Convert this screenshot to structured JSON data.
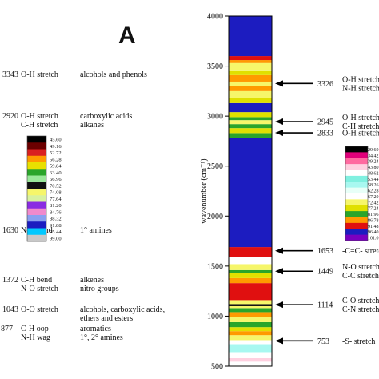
{
  "left_panel": {
    "panel_label": "A",
    "rows": [
      {
        "wavenumber": "3343",
        "bond": "O-H stretch",
        "group": "alcohols and phenols"
      },
      {
        "wavenumber": "2920",
        "bond": "O-H stretch\nC-H stretch",
        "group": "carboxylic acids\nalkanes"
      },
      {
        "wavenumber": "1630",
        "bond": "N-H bend",
        "group": "1° amines"
      },
      {
        "wavenumber": "1372",
        "bond": "C-H bend\nN-O stretch",
        "group": "alkenes\nnitro groups"
      },
      {
        "wavenumber": "1043",
        "bond": "O-O stretch",
        "group": "alcohols, carboxylic acids,\nethers and esters"
      },
      {
        "wavenumber": "877",
        "bond": "C-H oop\nN-H wag",
        "group": "aromatics\n1°, 2° amines"
      }
    ]
  },
  "chart_data": {
    "type": "heatmap",
    "ylabel": "wavenumber (cm⁻¹)",
    "ylim": [
      500,
      4000
    ],
    "yticks": [
      500,
      1000,
      1500,
      2000,
      2500,
      3000,
      3500,
      4000
    ],
    "legends": [
      {
        "entries": [
          {
            "value": 45.6,
            "label": "45.60",
            "color": "#000000"
          },
          {
            "value": 49.16,
            "label": "49.16",
            "color": "#6b0000"
          },
          {
            "value": 52.72,
            "label": "52.72",
            "color": "#d92020"
          },
          {
            "value": 56.28,
            "label": "56.28",
            "color": "#ff9a00"
          },
          {
            "value": 59.84,
            "label": "59.84",
            "color": "#e8e000"
          },
          {
            "value": 63.4,
            "label": "63.40",
            "color": "#2aa52a"
          },
          {
            "value": 66.96,
            "label": "66.96",
            "color": "#9ae89a"
          },
          {
            "value": 70.52,
            "label": "70.52",
            "color": "#111111"
          },
          {
            "value": 74.08,
            "label": "74.08",
            "color": "#f6f66a"
          },
          {
            "value": 77.64,
            "label": "77.64",
            "color": "#d8f2a0"
          },
          {
            "value": 81.2,
            "label": "81.20",
            "color": "#8a2be2"
          },
          {
            "value": 84.76,
            "label": "84.76",
            "color": "#f08acc"
          },
          {
            "value": 88.32,
            "label": "88.32",
            "color": "#8aa0f0"
          },
          {
            "value": 91.88,
            "label": "91.88",
            "color": "#1c1cc0"
          },
          {
            "value": 95.44,
            "label": "95.44",
            "color": "#00c8ff"
          },
          {
            "value": 99.0,
            "label": "99.00",
            "color": "#c8c8c8"
          }
        ]
      },
      {
        "entries": [
          {
            "value": 29.6,
            "label": "29.60",
            "color": "#000000"
          },
          {
            "value": 34.42,
            "label": "34.42",
            "color": "#e0007a"
          },
          {
            "value": 39.24,
            "label": "39.24",
            "color": "#ff6aa0"
          },
          {
            "value": 43.8,
            "label": "43.80",
            "color": "#ffd0e0"
          },
          {
            "value": 48.62,
            "label": "48.62",
            "color": "#ffffff"
          },
          {
            "value": 53.44,
            "label": "53.44",
            "color": "#80f0e0"
          },
          {
            "value": 58.26,
            "label": "58.26",
            "color": "#a8f8f0"
          },
          {
            "value": 62.28,
            "label": "62.28",
            "color": "#e8fff8"
          },
          {
            "value": 67.2,
            "label": "67.20",
            "color": "#ffffff"
          },
          {
            "value": 72.42,
            "label": "72.42",
            "color": "#f6f66a"
          },
          {
            "value": 77.24,
            "label": "77.24",
            "color": "#e0e000"
          },
          {
            "value": 81.96,
            "label": "81.96",
            "color": "#2aa52a"
          },
          {
            "value": 86.78,
            "label": "86.78",
            "color": "#ff9a00"
          },
          {
            "value": 91.48,
            "label": "91.48",
            "color": "#e01010"
          },
          {
            "value": 96.4,
            "label": "96.40",
            "color": "#1c1cc0"
          },
          {
            "value": 101.0,
            "label": "101.0",
            "color": "#7a00c0"
          }
        ]
      }
    ],
    "bands": [
      {
        "from": 500,
        "to": 545,
        "color": "#ffffff"
      },
      {
        "from": 545,
        "to": 580,
        "color": "#ffd0e0"
      },
      {
        "from": 580,
        "to": 640,
        "color": "#ffffff"
      },
      {
        "from": 640,
        "to": 720,
        "color": "#a8f8f0"
      },
      {
        "from": 720,
        "to": 760,
        "color": "#ffffff"
      },
      {
        "from": 760,
        "to": 810,
        "color": "#f6f66a"
      },
      {
        "from": 810,
        "to": 850,
        "color": "#ff9a00"
      },
      {
        "from": 850,
        "to": 890,
        "color": "#e0e000"
      },
      {
        "from": 890,
        "to": 940,
        "color": "#2aa52a"
      },
      {
        "from": 940,
        "to": 990,
        "color": "#f6f66a"
      },
      {
        "from": 990,
        "to": 1040,
        "color": "#ff9a00"
      },
      {
        "from": 1040,
        "to": 1080,
        "color": "#2aa52a"
      },
      {
        "from": 1080,
        "to": 1100,
        "color": "#f6f66a"
      },
      {
        "from": 1100,
        "to": 1120,
        "color": "#000000"
      },
      {
        "from": 1120,
        "to": 1160,
        "color": "#f6f66a"
      },
      {
        "from": 1160,
        "to": 1330,
        "color": "#e01010"
      },
      {
        "from": 1330,
        "to": 1380,
        "color": "#ff9a00"
      },
      {
        "from": 1380,
        "to": 1430,
        "color": "#e0e000"
      },
      {
        "from": 1430,
        "to": 1460,
        "color": "#2aa52a"
      },
      {
        "from": 1460,
        "to": 1520,
        "color": "#f6f66a"
      },
      {
        "from": 1520,
        "to": 1590,
        "color": "#ffffff"
      },
      {
        "from": 1590,
        "to": 1690,
        "color": "#e01010"
      },
      {
        "from": 1690,
        "to": 2780,
        "color": "#1c1cc0"
      },
      {
        "from": 2780,
        "to": 2830,
        "color": "#2aa52a"
      },
      {
        "from": 2830,
        "to": 2880,
        "color": "#e0e000"
      },
      {
        "from": 2880,
        "to": 2920,
        "color": "#2aa52a"
      },
      {
        "from": 2920,
        "to": 2960,
        "color": "#f6f66a"
      },
      {
        "from": 2960,
        "to": 2990,
        "color": "#2aa52a"
      },
      {
        "from": 2990,
        "to": 3040,
        "color": "#e0e000"
      },
      {
        "from": 3040,
        "to": 3130,
        "color": "#1c1cc0"
      },
      {
        "from": 3130,
        "to": 3180,
        "color": "#e0e000"
      },
      {
        "from": 3180,
        "to": 3250,
        "color": "#f6f66a"
      },
      {
        "from": 3250,
        "to": 3300,
        "color": "#ff9a00"
      },
      {
        "from": 3300,
        "to": 3345,
        "color": "#f6f66a"
      },
      {
        "from": 3345,
        "to": 3410,
        "color": "#ff9a00"
      },
      {
        "from": 3410,
        "to": 3450,
        "color": "#e0e000"
      },
      {
        "from": 3450,
        "to": 3530,
        "color": "#f6f66a"
      },
      {
        "from": 3530,
        "to": 3560,
        "color": "#ff9a00"
      },
      {
        "from": 3560,
        "to": 3600,
        "color": "#e01010"
      },
      {
        "from": 3600,
        "to": 4000,
        "color": "#1c1cc0"
      }
    ],
    "annotations": [
      {
        "wavenumber": 3326,
        "label": "3326",
        "text": "O-H stretch\nN-H stretch"
      },
      {
        "wavenumber": 2945,
        "label": "2945",
        "text": "O-H stretch\nC-H stretch"
      },
      {
        "wavenumber": 2833,
        "label": "2833",
        "text": "O-H stretch"
      },
      {
        "wavenumber": 1653,
        "label": "1653",
        "text": "-C=C- stretch"
      },
      {
        "wavenumber": 1449,
        "label": "1449",
        "text": "N-O stretch\nC-C stretch"
      },
      {
        "wavenumber": 1114,
        "label": "1114",
        "text": "C-O stretch\nC-N stretch"
      },
      {
        "wavenumber": 753,
        "label": "753",
        "text": "-S- stretch"
      }
    ]
  }
}
